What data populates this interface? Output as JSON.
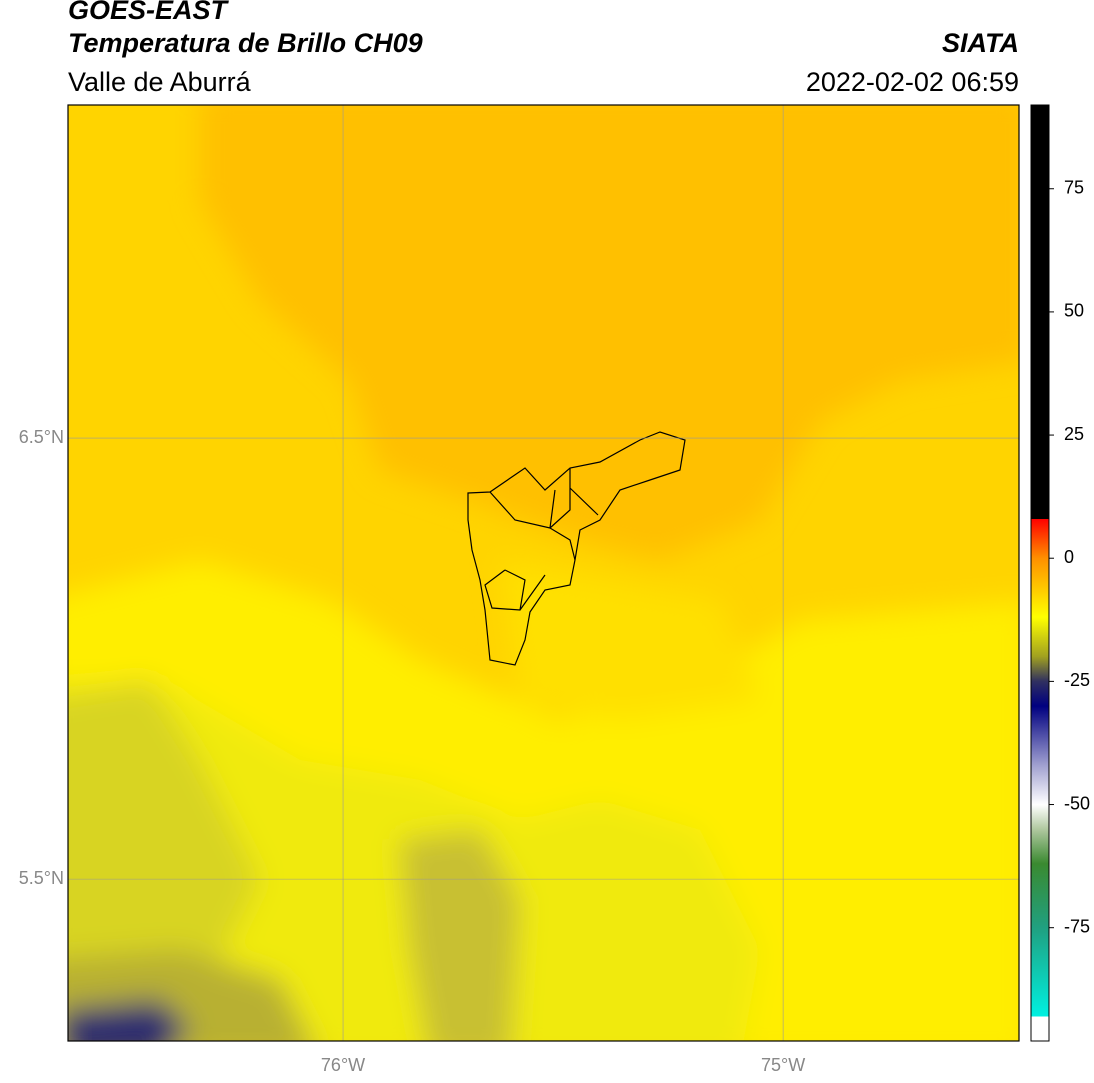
{
  "header": {
    "title": "GOES-EAST",
    "subtitle": "Temperatura de Brillo CH09",
    "region": "Valle de Aburrá",
    "source": "SIATA",
    "datetime": "2022-02-02 06:59"
  },
  "map": {
    "lon_range": [
      -76.625,
      -74.464
    ],
    "lat_range": [
      5.133,
      7.255
    ],
    "lon_ticks": [
      {
        "value": -76,
        "label": "76°W"
      },
      {
        "value": -75,
        "label": "75°W"
      }
    ],
    "lat_ticks": [
      {
        "value": 6.5,
        "label": "6.5°N"
      },
      {
        "value": 5.5,
        "label": "5.5°N"
      }
    ],
    "grid": true
  },
  "colorbar": {
    "range": [
      -98,
      92
    ],
    "ticks": [
      75,
      50,
      25,
      0,
      -25,
      -50,
      -75
    ],
    "colormap": [
      {
        "value": -98,
        "color": "#ffffff"
      },
      {
        "value": -93,
        "color": "#ffffff"
      },
      {
        "value": -93,
        "color": "#00f0e0"
      },
      {
        "value": -75,
        "color": "#20a080"
      },
      {
        "value": -62,
        "color": "#3a8a30"
      },
      {
        "value": -55,
        "color": "#b0c8a0"
      },
      {
        "value": -50,
        "color": "#ffffff"
      },
      {
        "value": -42,
        "color": "#a0a0d0"
      },
      {
        "value": -30,
        "color": "#000080"
      },
      {
        "value": -25,
        "color": "#303060"
      },
      {
        "value": -20,
        "color": "#a0a020"
      },
      {
        "value": -12,
        "color": "#ffff00"
      },
      {
        "value": 0,
        "color": "#ff9000"
      },
      {
        "value": 8,
        "color": "#ff0000"
      },
      {
        "value": 8,
        "color": "#000000"
      },
      {
        "value": 92,
        "color": "#000000"
      }
    ]
  }
}
